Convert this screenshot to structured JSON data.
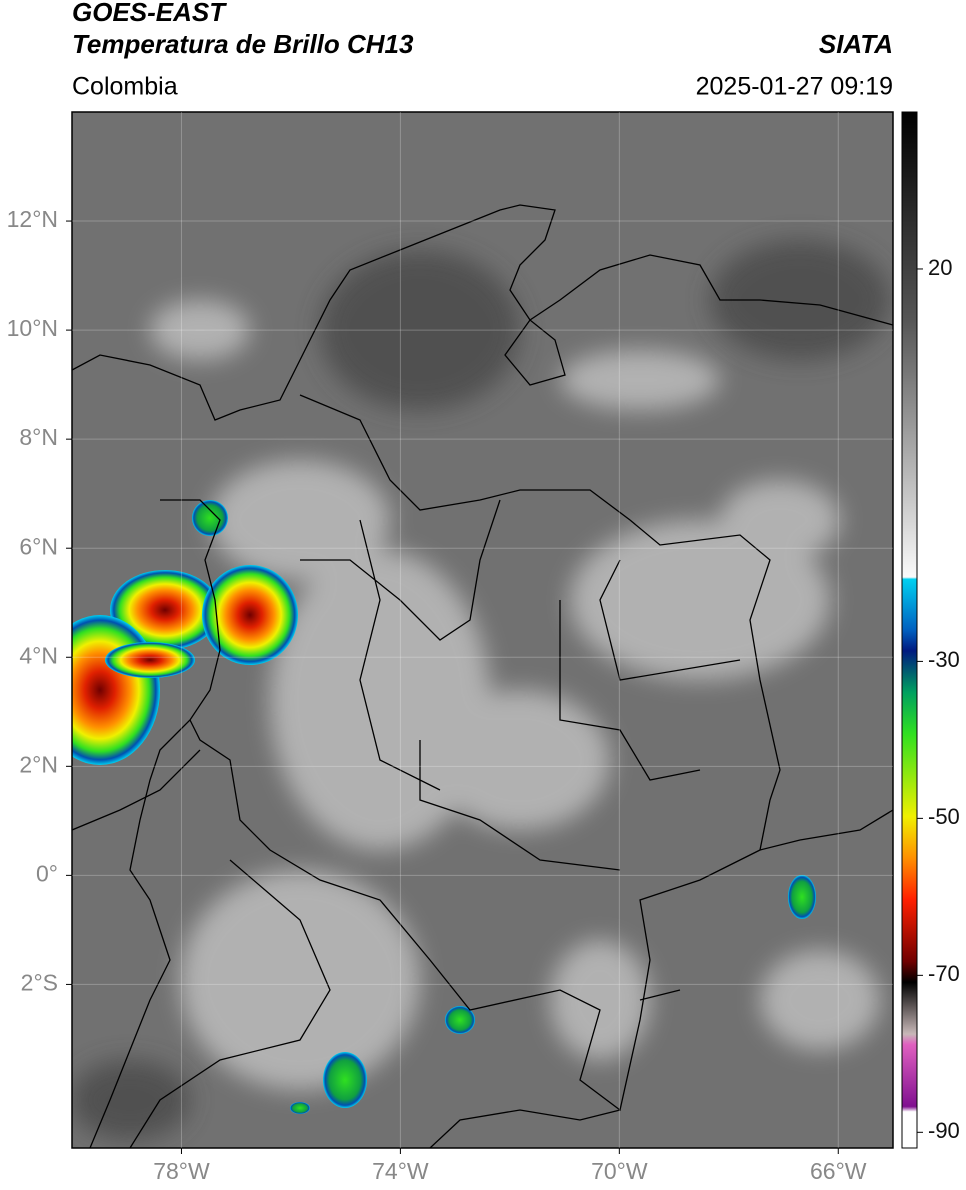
{
  "header": {
    "title": "GOES-EAST",
    "subtitle": "Temperatura de Brillo CH13",
    "region": "Colombia",
    "source": "SIATA",
    "datetime": "2025-01-27 09:19"
  },
  "map": {
    "latlim": [
      -5,
      14
    ],
    "lonlim": [
      -80,
      -65
    ],
    "lat_ticks": [
      {
        "value": 12,
        "label": "12°N"
      },
      {
        "value": 10,
        "label": "10°N"
      },
      {
        "value": 8,
        "label": "8°N"
      },
      {
        "value": 6,
        "label": "6°N"
      },
      {
        "value": 4,
        "label": "4°N"
      },
      {
        "value": 2,
        "label": "2°N"
      },
      {
        "value": 0,
        "label": "0°"
      },
      {
        "value": -2,
        "label": "2°S"
      }
    ],
    "lon_ticks": [
      {
        "value": -78,
        "label": "78°W"
      },
      {
        "value": -74,
        "label": "74°W"
      },
      {
        "value": -70,
        "label": "70°W"
      },
      {
        "value": -66,
        "label": "66°W"
      }
    ],
    "grid": true
  },
  "colorbar": {
    "lim": [
      -92,
      40
    ],
    "ticks": [
      20,
      -30,
      -50,
      -70,
      -90
    ]
  }
}
